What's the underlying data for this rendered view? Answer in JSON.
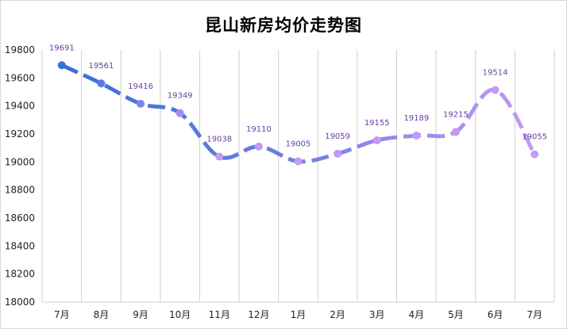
{
  "chart_data": {
    "type": "line",
    "title": "昆山新房均价走势图",
    "xlabel": "",
    "ylabel": "",
    "categories": [
      "7月",
      "8月",
      "9月",
      "10月",
      "11月",
      "12月",
      "1月",
      "2月",
      "3月",
      "4月",
      "5月",
      "6月",
      "7月"
    ],
    "values": [
      19691,
      19561,
      19416,
      19349,
      19038,
      19110,
      19005,
      19059,
      19155,
      19189,
      19215,
      19514,
      19055
    ],
    "ylim": [
      18000,
      19800
    ],
    "yticks": [
      18000,
      18200,
      18400,
      18600,
      18800,
      19000,
      19200,
      19400,
      19600,
      19800
    ],
    "grid": {
      "vertical": true,
      "horizontal": false
    },
    "legend": null,
    "line_style": "dashed-smooth",
    "colors": {
      "start": "#3a6fd8",
      "end": "#c49af5",
      "label": "#6b3fa0"
    }
  }
}
